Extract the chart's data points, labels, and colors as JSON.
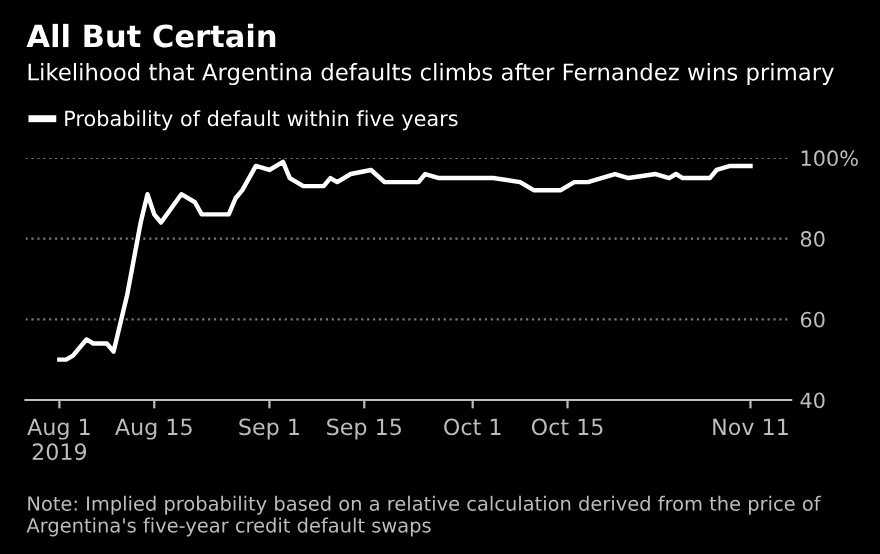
{
  "chart_data": {
    "type": "line",
    "title": "All But Certain",
    "subtitle": "Likelihood that Argentina defaults climbs after Fernandez wins primary",
    "x": [
      "2019-08-01",
      "2019-08-02",
      "2019-08-03",
      "2019-08-05",
      "2019-08-06",
      "2019-08-08",
      "2019-08-09",
      "2019-08-11",
      "2019-08-13",
      "2019-08-14",
      "2019-08-15",
      "2019-08-16",
      "2019-08-19",
      "2019-08-21",
      "2019-08-22",
      "2019-08-26",
      "2019-08-27",
      "2019-08-28",
      "2019-08-30",
      "2019-09-01",
      "2019-09-03",
      "2019-09-04",
      "2019-09-06",
      "2019-09-09",
      "2019-09-10",
      "2019-09-11",
      "2019-09-13",
      "2019-09-16",
      "2019-09-18",
      "2019-09-20",
      "2019-09-23",
      "2019-09-24",
      "2019-09-26",
      "2019-09-27",
      "2019-10-04",
      "2019-10-08",
      "2019-10-10",
      "2019-10-14",
      "2019-10-16",
      "2019-10-18",
      "2019-10-22",
      "2019-10-24",
      "2019-10-28",
      "2019-10-30",
      "2019-10-31",
      "2019-11-01",
      "2019-11-05",
      "2019-11-06",
      "2019-11-08",
      "2019-11-11"
    ],
    "series": [
      {
        "name": "Probability of default within five years",
        "color": "#ffffff",
        "values": [
          50,
          50,
          51,
          55,
          54,
          54,
          52,
          66,
          84,
          91,
          86,
          84,
          91,
          89,
          86,
          86,
          90,
          92,
          98,
          97,
          99,
          95,
          93,
          93,
          95,
          94,
          96,
          97,
          94,
          94,
          94,
          96,
          95,
          95,
          95,
          94,
          92,
          92,
          94,
          94,
          96,
          95,
          96,
          95,
          96,
          95,
          95,
          97,
          98,
          98
        ]
      }
    ],
    "xlim": [
      "2019-07-27",
      "2019-11-17"
    ],
    "xticks": [
      {
        "value": "2019-08-01",
        "label": "Aug 1\n2019"
      },
      {
        "value": "2019-08-15",
        "label": "Aug 15"
      },
      {
        "value": "2019-09-01",
        "label": "Sep 1"
      },
      {
        "value": "2019-09-15",
        "label": "Sep 15"
      },
      {
        "value": "2019-10-01",
        "label": "Oct 1"
      },
      {
        "value": "2019-10-15",
        "label": "Oct 15"
      },
      {
        "value": "2019-11-11",
        "label": "Nov 11"
      }
    ],
    "ylim": [
      40,
      100
    ],
    "yticks": [
      40,
      60,
      80,
      {
        "value": 100,
        "label": "100%"
      }
    ],
    "grid": "y",
    "legend": "top left",
    "marker": "none",
    "line_style": "solid",
    "annotations": [
      "Note: Implied probability based on a relative calculation derived from the price of Argentina's five-year credit default swaps"
    ]
  }
}
